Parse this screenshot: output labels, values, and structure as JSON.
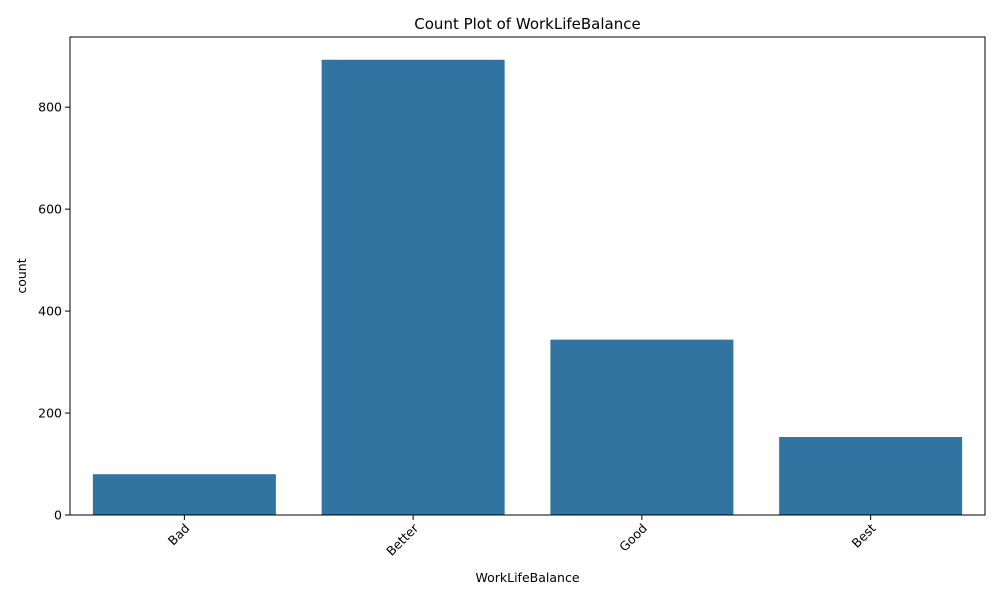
{
  "chart_data": {
    "type": "bar",
    "title": "Count Plot of WorkLifeBalance",
    "xlabel": "WorkLifeBalance",
    "ylabel": "count",
    "categories": [
      "Bad",
      "Better",
      "Good",
      "Best"
    ],
    "values": [
      80,
      893,
      344,
      153
    ],
    "ylim": [
      0,
      937.65
    ],
    "yticks": [
      0,
      200,
      400,
      600,
      800
    ],
    "bar_color": "#3274a1",
    "grid": false,
    "legend": "none",
    "xtick_rotation": 45
  }
}
